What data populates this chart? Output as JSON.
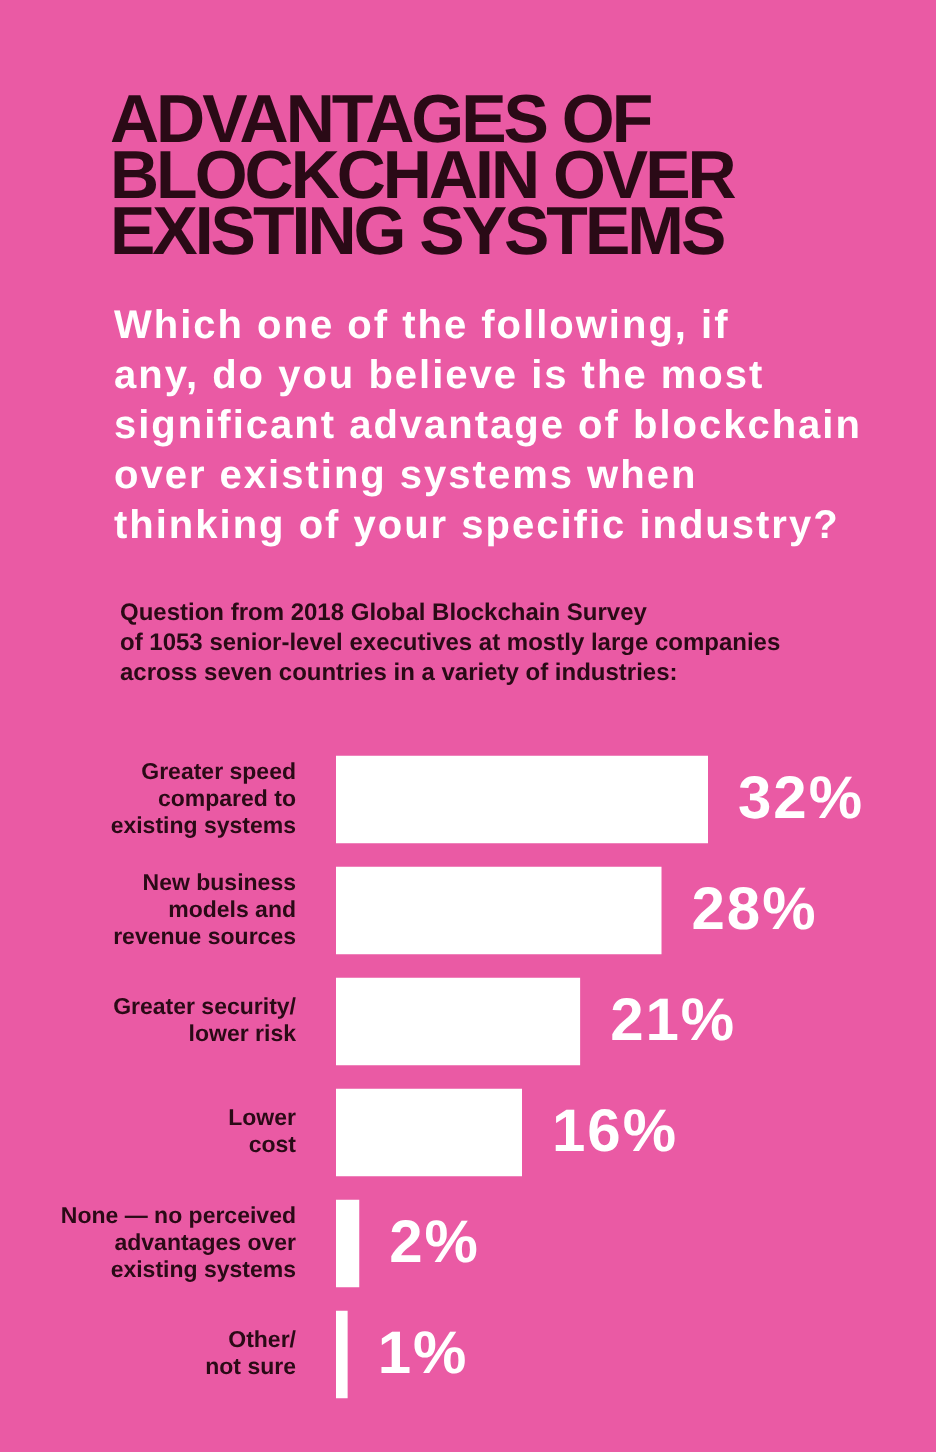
{
  "chart_data": {
    "type": "bar",
    "orientation": "horizontal",
    "title": "ADVANTAGES OF BLOCKCHAIN OVER EXISTING SYSTEMS",
    "subtitle": "Which one of the following, if\nany, do you believe is the most\nsignificant advantage of blockchain\nover existing systems when\nthinking of your specific industry?",
    "annotations": [
      "Question from 2018 Global Blockchain Survey\nof 1053 senior-level executives at mostly large companies\nacross seven countries in a variety of industries:"
    ],
    "categories": [
      "Greater speed\ncompared to\nexisting systems",
      "New business\nmodels and\nrevenue sources",
      "Greater security/\nlower risk",
      "Lower\ncost",
      "None — no perceived\nadvantages over\nexisting systems",
      "Other/\nnot sure"
    ],
    "values": [
      32,
      28,
      21,
      16,
      2,
      1
    ],
    "value_labels": [
      "32%",
      "28%",
      "21%",
      "16%",
      "2%",
      "1%"
    ],
    "color": "#ffffff",
    "tick_labels": "y"
  }
}
